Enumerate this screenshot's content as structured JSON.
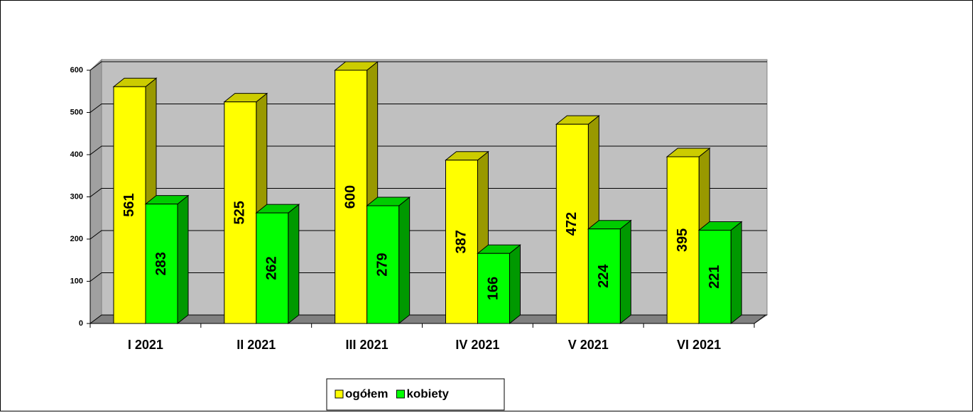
{
  "chart_data": {
    "type": "bar3d",
    "categories": [
      "I 2021",
      "II 2021",
      "III 2021",
      "IV 2021",
      "V 2021",
      "VI 2021"
    ],
    "series": [
      {
        "name": "ogółem",
        "color": "#ffff00",
        "values": [
          561,
          525,
          600,
          387,
          472,
          395
        ]
      },
      {
        "name": "kobiety",
        "color": "#00ff00",
        "values": [
          283,
          262,
          279,
          166,
          224,
          221
        ]
      }
    ],
    "ylim": [
      0,
      600
    ],
    "yticks": [
      0,
      100,
      200,
      300,
      400,
      500,
      600
    ],
    "grid": true,
    "legend": "bottom"
  }
}
